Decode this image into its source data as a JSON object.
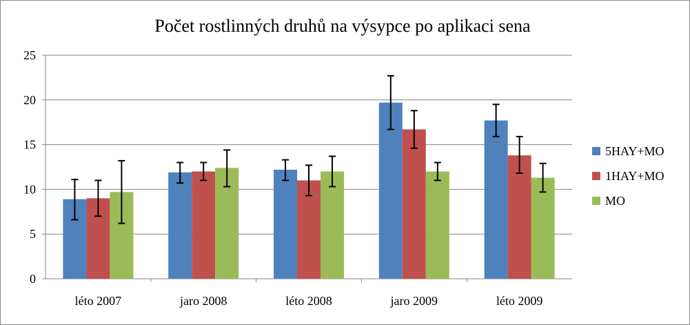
{
  "chart_data": {
    "type": "bar",
    "title": "Počet rostlinných druhů na výsypce po aplikaci sena",
    "xlabel": "",
    "ylabel": "",
    "ylim": [
      0,
      25
    ],
    "yticks": [
      "0",
      "5",
      "10",
      "15",
      "20",
      "25"
    ],
    "grid": true,
    "legend_position": "right",
    "categories": [
      "léto 2007",
      "jaro 2008",
      "léto 2008",
      "jaro 2009",
      "léto 2009"
    ],
    "series": [
      {
        "name": "5HAY+MO",
        "color": "#4F81BD",
        "values": [
          8.9,
          11.9,
          12.2,
          19.7,
          17.7
        ],
        "err_low": [
          6.6,
          10.7,
          11.0,
          16.7,
          15.9
        ],
        "err_high": [
          11.1,
          13.0,
          13.3,
          22.7,
          19.5
        ]
      },
      {
        "name": "1HAY+MO",
        "color": "#C0504D",
        "values": [
          9.0,
          12.0,
          11.0,
          16.7,
          13.8
        ],
        "err_low": [
          7.0,
          11.0,
          9.3,
          14.6,
          11.8
        ],
        "err_high": [
          11.0,
          13.0,
          12.7,
          18.8,
          15.9
        ]
      },
      {
        "name": "MO",
        "color": "#9BBB59",
        "values": [
          9.7,
          12.4,
          12.0,
          12.0,
          11.3
        ],
        "err_low": [
          6.2,
          10.3,
          10.3,
          11.0,
          9.7
        ],
        "err_high": [
          13.2,
          14.4,
          13.7,
          13.0,
          12.9
        ]
      }
    ]
  }
}
